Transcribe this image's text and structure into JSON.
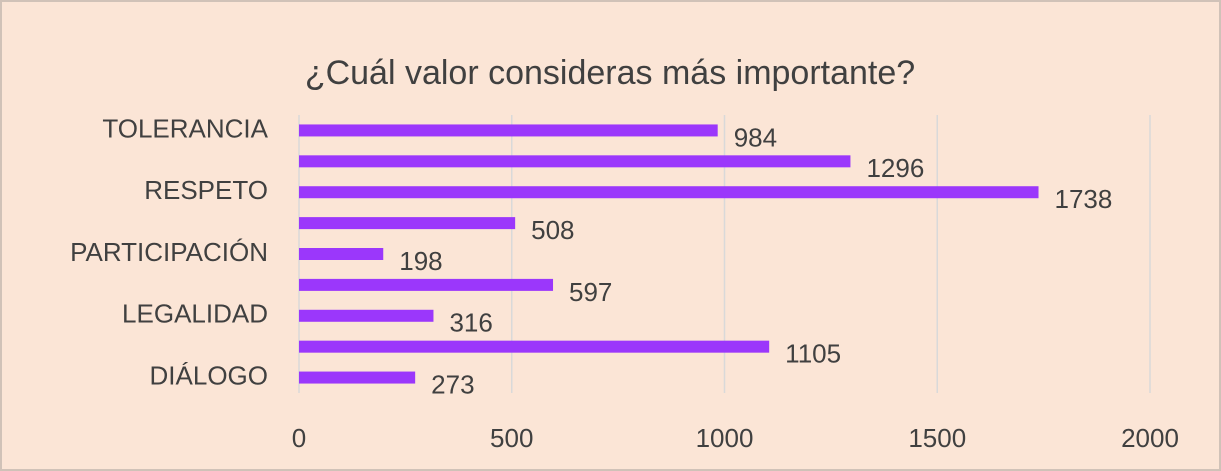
{
  "chart_data": {
    "type": "bar",
    "orientation": "horizontal",
    "title": "¿Cuál valor consideras más importante?",
    "categories": [
      "TOLERANCIA",
      null,
      "RESPETO",
      null,
      "PARTICIPACIÓN",
      null,
      "LEGALIDAD",
      null,
      "DIÁLOGO"
    ],
    "values": [
      984,
      1296,
      1738,
      508,
      198,
      597,
      316,
      1105,
      273
    ],
    "color": "#9b37fb",
    "xlim": [
      0,
      2000
    ],
    "xticks": [
      0,
      500,
      1000,
      1500,
      2000
    ],
    "grid": true,
    "data_labels": true
  }
}
